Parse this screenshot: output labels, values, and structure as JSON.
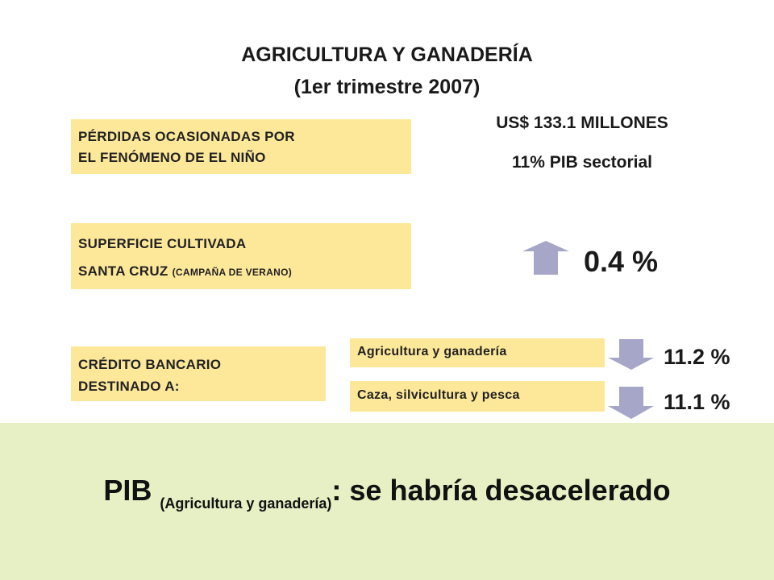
{
  "title": {
    "line1": "AGRICULTURA  Y GANADERÍA",
    "line2": "(1er trimestre 2007)"
  },
  "perdidas": {
    "line1": "PÉRDIDAS OCASIONADAS POR",
    "line2": "EL FENÓMENO DE EL NIÑO",
    "amount": "US$ 133.1 MILLONES",
    "pib_share": "11% PIB sectorial"
  },
  "superficie": {
    "line1": "SUPERFICIE CULTIVADA",
    "line2_main": "SANTA CRUZ",
    "line2_sub": "(CAMPAÑA DE VERANO)",
    "change": "0.4 %",
    "direction_icon": "arrow-up-icon"
  },
  "credito": {
    "line1": "CRÉDITO BANCARIO",
    "line2": "DESTINADO A:",
    "items": [
      {
        "label": "Agricultura y ganadería",
        "change": "11.2 %",
        "direction_icon": "arrow-down-icon"
      },
      {
        "label": "Caza, silvicultura y pesca",
        "change": "11.1 %",
        "direction_icon": "arrow-down-icon"
      }
    ]
  },
  "conclusion": {
    "main": "PIB",
    "sub": "(Agricultura y ganadería)",
    "rest": ": se habría desacelerado"
  },
  "colors": {
    "box_fill": "#fde89a",
    "arrow_fill": "#a6a6c8",
    "bottom_band": "#e6f0c4"
  }
}
